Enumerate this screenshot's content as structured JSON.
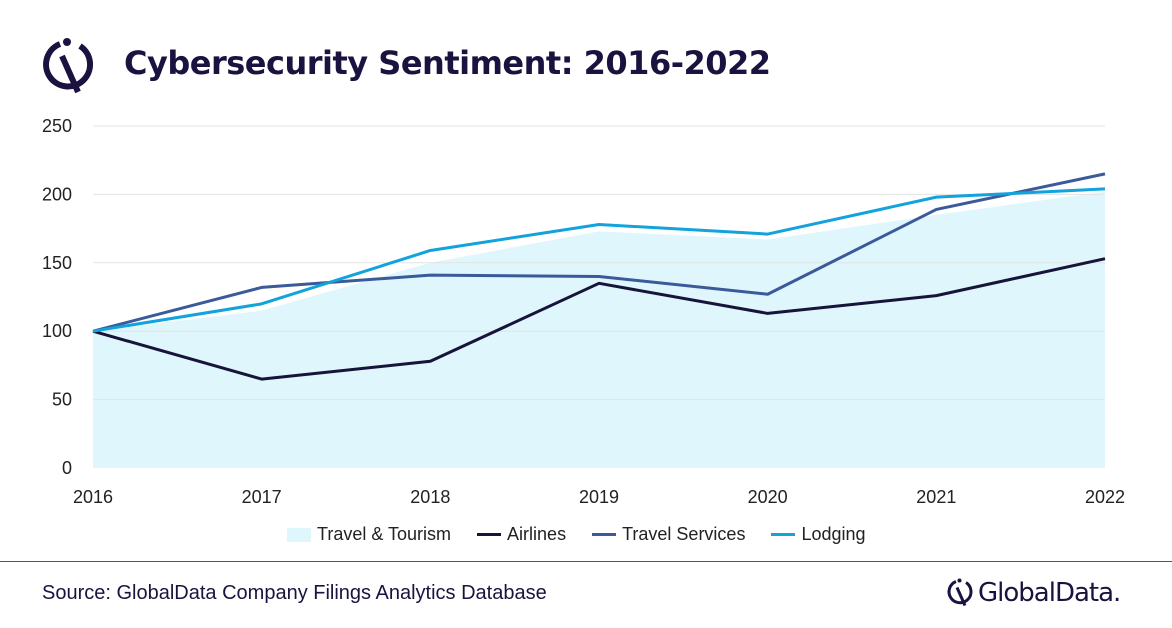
{
  "header": {
    "title": "Cybersecurity Sentiment: 2016-2022"
  },
  "footer": {
    "source": "Source: GlobalData Company Filings Analytics Database",
    "brand": "GlobalData."
  },
  "chart_data": {
    "type": "line",
    "title": "Cybersecurity Sentiment: 2016-2022",
    "categories": [
      "2016",
      "2017",
      "2018",
      "2019",
      "2020",
      "2021",
      "2022"
    ],
    "ylim": [
      0,
      250
    ],
    "yticks": [
      0,
      50,
      100,
      150,
      200,
      250
    ],
    "grid": true,
    "legend_position": "bottom",
    "series": [
      {
        "name": "Travel & Tourism",
        "style": "area",
        "color": "#e0f6fd",
        "values": [
          100,
          115,
          150,
          173,
          167,
          185,
          202
        ]
      },
      {
        "name": "Airlines",
        "style": "line",
        "color": "#16143a",
        "values": [
          100,
          65,
          78,
          135,
          113,
          126,
          153
        ]
      },
      {
        "name": "Travel Services",
        "style": "line",
        "color": "#3a5a9a",
        "values": [
          100,
          132,
          141,
          140,
          127,
          189,
          215
        ]
      },
      {
        "name": "Lodging",
        "style": "line",
        "color": "#12a3dc",
        "values": [
          100,
          120,
          159,
          178,
          171,
          198,
          204
        ]
      }
    ]
  }
}
